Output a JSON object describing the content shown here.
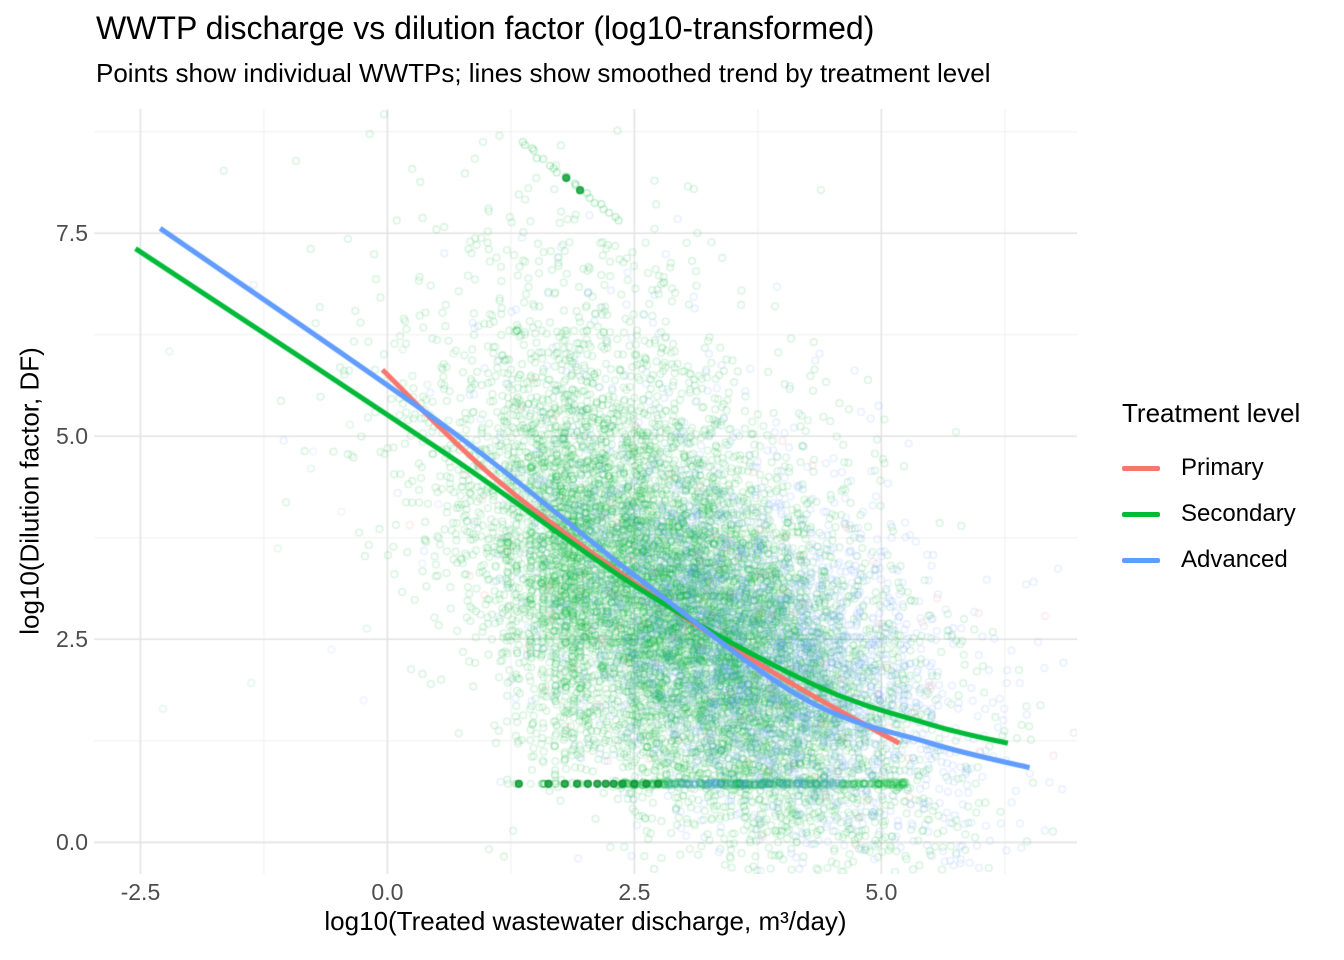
{
  "chart_data": {
    "type": "scatter",
    "title": "WWTP discharge vs dilution factor (log10-transformed)",
    "subtitle": "Points show individual WWTPs; lines show smoothed trend by treatment level",
    "xlabel": "log10(Treated wastewater discharge, m³/day)",
    "ylabel": "log10(Dilution factor, DF)",
    "xlim": [
      -2.97,
      6.98
    ],
    "ylim": [
      -0.39,
      9.03
    ],
    "x_ticks": {
      "values": [
        -2.5,
        0.0,
        2.5,
        5.0
      ],
      "labels": [
        "-2.5",
        "0.0",
        "2.5",
        "5.0"
      ]
    },
    "y_ticks": {
      "values": [
        0.0,
        2.5,
        5.0,
        7.5
      ],
      "labels": [
        "0.0",
        "2.5",
        "5.0",
        "7.5"
      ]
    },
    "x_minor": [
      -1.25,
      1.25,
      3.75,
      6.25
    ],
    "y_minor": [
      1.25,
      3.75,
      6.25,
      8.75
    ],
    "grid": {
      "major_color": "#e3e3e3",
      "minor_color": "#f0f0f0",
      "background": "#ffffff"
    },
    "legend": {
      "title": "Treatment level",
      "entries": [
        {
          "label": "Primary",
          "color": "#F8766D"
        },
        {
          "label": "Secondary",
          "color": "#00BA38"
        },
        {
          "label": "Advanced",
          "color": "#619CFF"
        }
      ]
    },
    "point_style": {
      "radius": 3.3,
      "stroke_width": 1.6,
      "alpha": 0.14
    },
    "seed": 20240613,
    "clusters": [
      {
        "name": "secondary-main",
        "color": "#00BA38",
        "n": 8500,
        "mx": 3.05,
        "my": 2.7,
        "sx": 1.05,
        "sy": 1.3,
        "rho": -0.55
      },
      {
        "name": "secondary-upper",
        "color": "#00BA38",
        "n": 550,
        "mx": 2.3,
        "my": 5.4,
        "sx": 0.8,
        "sy": 1.2,
        "rho": -0.35
      },
      {
        "name": "secondary-halo",
        "color": "#00BA38",
        "n": 500,
        "mx": 2.7,
        "my": 4.0,
        "sx": 1.5,
        "sy": 1.8,
        "rho": -0.5
      },
      {
        "name": "advanced-main",
        "color": "#619CFF",
        "n": 2700,
        "mx": 3.8,
        "my": 2.25,
        "sx": 1.0,
        "sy": 1.1,
        "rho": -0.45
      },
      {
        "name": "advanced-halo",
        "color": "#619CFF",
        "n": 250,
        "mx": 3.2,
        "my": 4.2,
        "sx": 1.3,
        "sy": 1.5,
        "rho": -0.4
      },
      {
        "name": "primary-sparse",
        "color": "#F8766D",
        "n": 130,
        "mx": 3.3,
        "my": 2.7,
        "sx": 1.15,
        "sy": 1.25,
        "rho": -0.5
      }
    ],
    "stripes": [
      {
        "x": 1.22,
        "n": 45,
        "my": 3.6,
        "sy": 1.4
      },
      {
        "x": 1.31,
        "n": 45,
        "my": 3.3,
        "sy": 1.3
      },
      {
        "x": 1.45,
        "n": 60,
        "my": 3.3,
        "sy": 1.3
      },
      {
        "x": 1.575,
        "n": 80,
        "my": 3.2,
        "sy": 1.3
      },
      {
        "x": 1.7,
        "n": 100,
        "my": 3.2,
        "sy": 1.3
      },
      {
        "x": 1.8,
        "n": 110,
        "my": 3.1,
        "sy": 1.3
      },
      {
        "x": 1.875,
        "n": 120,
        "my": 3.1,
        "sy": 1.3
      },
      {
        "x": 1.95,
        "n": 80,
        "my": 3.0,
        "sy": 1.3
      },
      {
        "x": 2.02,
        "n": 60,
        "my": 3.0,
        "sy": 1.3
      }
    ],
    "bottom_row": {
      "y": 0.72,
      "dark_x": [
        1.33,
        1.63,
        1.795,
        1.92,
        2.03,
        2.125,
        2.21,
        2.29,
        2.38,
        2.5,
        2.62,
        2.74
      ],
      "green_span": [
        2.3,
        5.25
      ],
      "green_n": 300,
      "blue_span": [
        2.85,
        4.65
      ],
      "blue_n": 90
    },
    "diagonal_streak": {
      "from": [
        1.35,
        8.63
      ],
      "to": [
        2.33,
        7.66
      ],
      "n": 22,
      "dark_points": [
        [
          1.81,
          8.18
        ],
        [
          1.95,
          8.03
        ]
      ]
    },
    "arcs": [
      {
        "p0": [
          1.82,
          1.9
        ],
        "p1": [
          2.2,
          0.95
        ],
        "p2": [
          2.95,
          0.8
        ],
        "n": 13
      },
      {
        "p0": [
          2.05,
          1.75
        ],
        "p1": [
          2.45,
          1.0
        ],
        "p2": [
          3.2,
          0.85
        ],
        "n": 12
      },
      {
        "p0": [
          2.3,
          1.6
        ],
        "p1": [
          2.7,
          1.05
        ],
        "p2": [
          3.5,
          0.9
        ],
        "n": 11
      }
    ],
    "far_left_sparse": {
      "n": 18,
      "x_span": [
        -2.3,
        0.8
      ],
      "y_span": [
        1.5,
        6.8
      ]
    },
    "trend_lines": [
      {
        "name": "Primary",
        "color": "#F8766D",
        "width": 5,
        "points": [
          [
            -0.05,
            5.82
          ],
          [
            1.11,
            4.46
          ],
          [
            2.73,
            3.0
          ],
          [
            4.1,
            1.95
          ],
          [
            5.18,
            1.22
          ]
        ]
      },
      {
        "name": "Secondary",
        "color": "#00BA38",
        "width": 5,
        "points": [
          [
            -2.55,
            7.31
          ],
          [
            0.61,
            4.77
          ],
          [
            2.53,
            3.14
          ],
          [
            4.3,
            1.95
          ],
          [
            5.5,
            1.45
          ],
          [
            6.28,
            1.22
          ]
        ]
      },
      {
        "name": "Advanced",
        "color": "#619CFF",
        "width": 5,
        "points": [
          [
            -2.3,
            7.56
          ],
          [
            0.61,
            5.1
          ],
          [
            2.53,
            3.26
          ],
          [
            4.2,
            1.78
          ],
          [
            5.5,
            1.22
          ],
          [
            6.5,
            0.92
          ]
        ]
      }
    ]
  }
}
